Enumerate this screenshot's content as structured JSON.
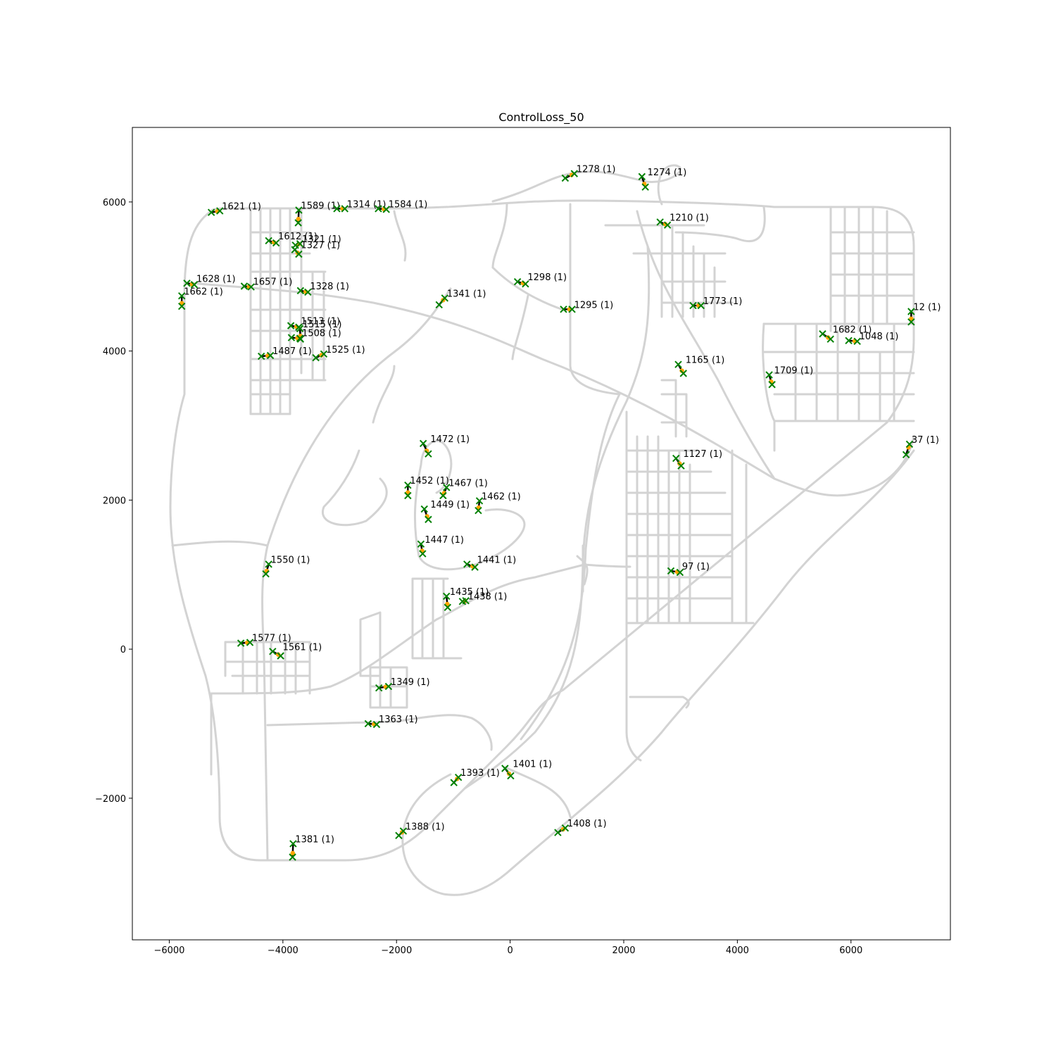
{
  "title": "ControlLoss_50",
  "colors": {
    "road": "#d3d3d3",
    "marker_x": "#008000",
    "marker_dot": "#ffa500",
    "segment": "#000000"
  },
  "chart_data": {
    "type": "scatter",
    "title": "ControlLoss_50",
    "xlabel": "",
    "ylabel": "",
    "xlim": [
      -6650,
      7750
    ],
    "ylim": [
      -3900,
      7000
    ],
    "xticks": [
      -6000,
      -4000,
      -2000,
      0,
      2000,
      4000,
      6000
    ],
    "yticks": [
      -2000,
      0,
      2000,
      4000,
      6000
    ],
    "xtick_labels": [
      "−6000",
      "−4000",
      "−2000",
      "0",
      "2000",
      "4000",
      "6000"
    ],
    "ytick_labels": [
      "−2000",
      "0",
      "2000",
      "4000",
      "6000"
    ],
    "grid": false,
    "marker": "x",
    "events": [
      {
        "label": "1278 (1)",
        "a": [
          970,
          6320
        ],
        "b": [
          1130,
          6380
        ]
      },
      {
        "label": "1274 (1)",
        "a": [
          2320,
          6340
        ],
        "b": [
          2380,
          6200
        ]
      },
      {
        "label": "1621 (1)",
        "a": [
          -5260,
          5860
        ],
        "b": [
          -5110,
          5880
        ]
      },
      {
        "label": "1589 (1)",
        "a": [
          -3720,
          5890
        ],
        "b": [
          -3730,
          5720
        ]
      },
      {
        "label": "1314 (1)",
        "a": [
          -3050,
          5910
        ],
        "b": [
          -2910,
          5910
        ]
      },
      {
        "label": "1584 (1)",
        "a": [
          -2320,
          5910
        ],
        "b": [
          -2180,
          5900
        ]
      },
      {
        "label": "1210 (1)",
        "a": [
          2640,
          5730
        ],
        "b": [
          2770,
          5690
        ]
      },
      {
        "label": "1612 (1)",
        "a": [
          -4250,
          5480
        ],
        "b": [
          -4120,
          5450
        ]
      },
      {
        "label": "1321 (1)",
        "a": [
          -3780,
          5420
        ],
        "b": [
          -3700,
          5440
        ]
      },
      {
        "label": "1327 (1)",
        "a": [
          -3790,
          5360
        ],
        "b": [
          -3720,
          5300
        ]
      },
      {
        "label": "1628 (1)",
        "a": [
          -5690,
          4910
        ],
        "b": [
          -5560,
          4890
        ]
      },
      {
        "label": "1662 (1)",
        "a": [
          -5780,
          4740
        ],
        "b": [
          -5780,
          4600
        ]
      },
      {
        "label": "1657 (1)",
        "a": [
          -4680,
          4870
        ],
        "b": [
          -4560,
          4860
        ]
      },
      {
        "label": "1328 (1)",
        "a": [
          -3690,
          4810
        ],
        "b": [
          -3560,
          4790
        ]
      },
      {
        "label": "1298 (1)",
        "a": [
          130,
          4930
        ],
        "b": [
          270,
          4900
        ]
      },
      {
        "label": "1341 (1)",
        "a": [
          -1250,
          4620
        ],
        "b": [
          -1150,
          4710
        ]
      },
      {
        "label": "1295 (1)",
        "a": [
          940,
          4560
        ],
        "b": [
          1090,
          4560
        ]
      },
      {
        "label": "1773 (1)",
        "a": [
          3220,
          4610
        ],
        "b": [
          3360,
          4610
        ]
      },
      {
        "label": "12 (1)",
        "a": [
          7060,
          4530
        ],
        "b": [
          7060,
          4390
        ]
      },
      {
        "label": "1513 (1)",
        "a": [
          -3860,
          4340
        ],
        "b": [
          -3720,
          4320
        ]
      },
      {
        "label": "1515 (1)",
        "a": [
          -3700,
          4300
        ],
        "b": [
          -3690,
          4160
        ]
      },
      {
        "label": "1508 (1)",
        "a": [
          -3850,
          4180
        ],
        "b": [
          -3700,
          4170
        ]
      },
      {
        "label": "1682 (1)",
        "a": [
          5500,
          4230
        ],
        "b": [
          5640,
          4160
        ]
      },
      {
        "label": "1048 (1)",
        "a": [
          5960,
          4140
        ],
        "b": [
          6110,
          4130
        ]
      },
      {
        "label": "1487 (1)",
        "a": [
          -4380,
          3930
        ],
        "b": [
          -4220,
          3940
        ]
      },
      {
        "label": "1525 (1)",
        "a": [
          -3420,
          3910
        ],
        "b": [
          -3280,
          3960
        ]
      },
      {
        "label": "1165 (1)",
        "a": [
          2960,
          3820
        ],
        "b": [
          3050,
          3700
        ]
      },
      {
        "label": "1709 (1)",
        "a": [
          4560,
          3680
        ],
        "b": [
          4610,
          3550
        ]
      },
      {
        "label": "1472 (1)",
        "a": [
          -1530,
          2760
        ],
        "b": [
          -1440,
          2620
        ]
      },
      {
        "label": "37 (1)",
        "a": [
          6970,
          2610
        ],
        "b": [
          7030,
          2750
        ]
      },
      {
        "label": "1127 (1)",
        "a": [
          2920,
          2560
        ],
        "b": [
          3010,
          2460
        ]
      },
      {
        "label": "1452 (1)",
        "a": [
          -1800,
          2200
        ],
        "b": [
          -1800,
          2060
        ]
      },
      {
        "label": "1467 (1)",
        "a": [
          -1120,
          2170
        ],
        "b": [
          -1180,
          2060
        ]
      },
      {
        "label": "1462 (1)",
        "a": [
          -540,
          1990
        ],
        "b": [
          -560,
          1860
        ]
      },
      {
        "label": "1449 (1)",
        "a": [
          -1510,
          1880
        ],
        "b": [
          -1440,
          1740
        ]
      },
      {
        "label": "1447 (1)",
        "a": [
          -1570,
          1410
        ],
        "b": [
          -1540,
          1280
        ]
      },
      {
        "label": "1550 (1)",
        "a": [
          -4250,
          1140
        ],
        "b": [
          -4300,
          1010
        ]
      },
      {
        "label": "1441 (1)",
        "a": [
          -760,
          1140
        ],
        "b": [
          -620,
          1100
        ]
      },
      {
        "label": "97 (1)",
        "a": [
          2830,
          1050
        ],
        "b": [
          2990,
          1030
        ]
      },
      {
        "label": "1435 (1)",
        "a": [
          -1120,
          710
        ],
        "b": [
          -1100,
          560
        ]
      },
      {
        "label": "1438 (1)",
        "a": [
          -840,
          640
        ],
        "b": [
          -780,
          650
        ]
      },
      {
        "label": "1577 (1)",
        "a": [
          -4740,
          80
        ],
        "b": [
          -4580,
          90
        ]
      },
      {
        "label": "1561 (1)",
        "a": [
          -4180,
          -30
        ],
        "b": [
          -4040,
          -90
        ]
      },
      {
        "label": "1349 (1)",
        "a": [
          -2310,
          -520
        ],
        "b": [
          -2140,
          -500
        ]
      },
      {
        "label": "1363 (1)",
        "a": [
          -2500,
          -1000
        ],
        "b": [
          -2350,
          -1010
        ]
      },
      {
        "label": "1401 (1)",
        "a": [
          -90,
          -1600
        ],
        "b": [
          10,
          -1700
        ]
      },
      {
        "label": "1393 (1)",
        "a": [
          -990,
          -1790
        ],
        "b": [
          -910,
          -1720
        ]
      },
      {
        "label": "1408 (1)",
        "a": [
          840,
          -2460
        ],
        "b": [
          970,
          -2400
        ]
      },
      {
        "label": "1388 (1)",
        "a": [
          -1960,
          -2500
        ],
        "b": [
          -1880,
          -2440
        ]
      },
      {
        "label": "1381 (1)",
        "a": [
          -3820,
          -2610
        ],
        "b": [
          -3830,
          -2790
        ]
      }
    ]
  }
}
